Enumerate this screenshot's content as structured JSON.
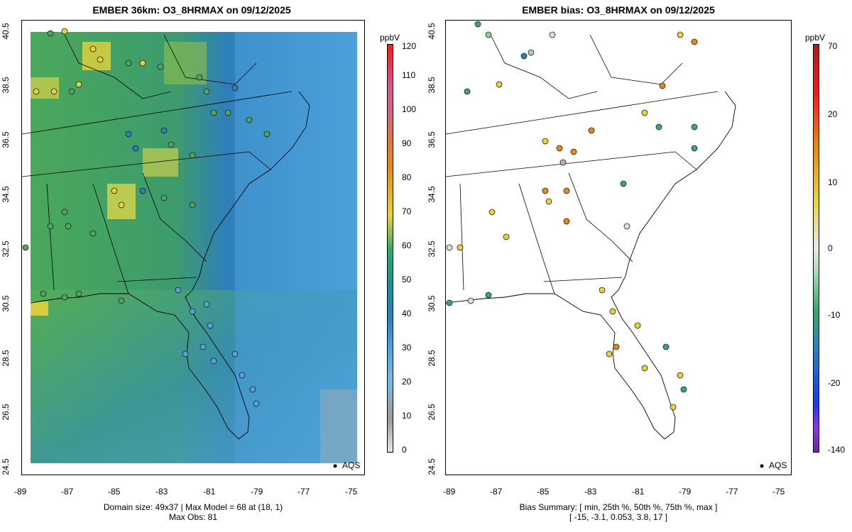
{
  "left_panel": {
    "title": "EMBER 36km: O3_8HRMAX on 09/12/2025",
    "footer_line1": "Domain size: 49x37 | Max Model = 68 at (18, 1)",
    "footer_line2": "Max Obs: 81",
    "colorbar_unit": "ppbV",
    "colorbar_ticks": [
      "0",
      "10",
      "20",
      "30",
      "40",
      "50",
      "60",
      "70",
      "80",
      "90",
      "100",
      "110",
      "120"
    ],
    "legend_label": "AQS"
  },
  "right_panel": {
    "title": "EMBER bias: O3_8HRMAX on 09/12/2025",
    "footer_line1": "Bias Summary: [ min, 25th %, 50th %, 75th %, max ]",
    "footer_line2": "[ -15,   -3.1,   0.053,   3.8,   17 ]",
    "colorbar_unit": "ppbV",
    "colorbar_ticks": [
      "70",
      "20",
      "10",
      "0",
      "-10",
      "-20",
      "-140"
    ],
    "legend_label": "AQS"
  },
  "axes": {
    "x_ticks": [
      "-89",
      "-87",
      "-85",
      "-83",
      "-81",
      "-79",
      "-77",
      "-75"
    ],
    "y_ticks": [
      "24.5",
      "26.5",
      "28.5",
      "30.5",
      "32.5",
      "34.5",
      "36.5",
      "38.5",
      "40.5"
    ]
  },
  "colors": {
    "ocean_blue": "#3f8fd0",
    "land_green": "#4aa85a",
    "hot_yellow": "#e6d23a",
    "bias_warm": "#e08a1e",
    "bias_cool": "#3aa86a"
  }
}
